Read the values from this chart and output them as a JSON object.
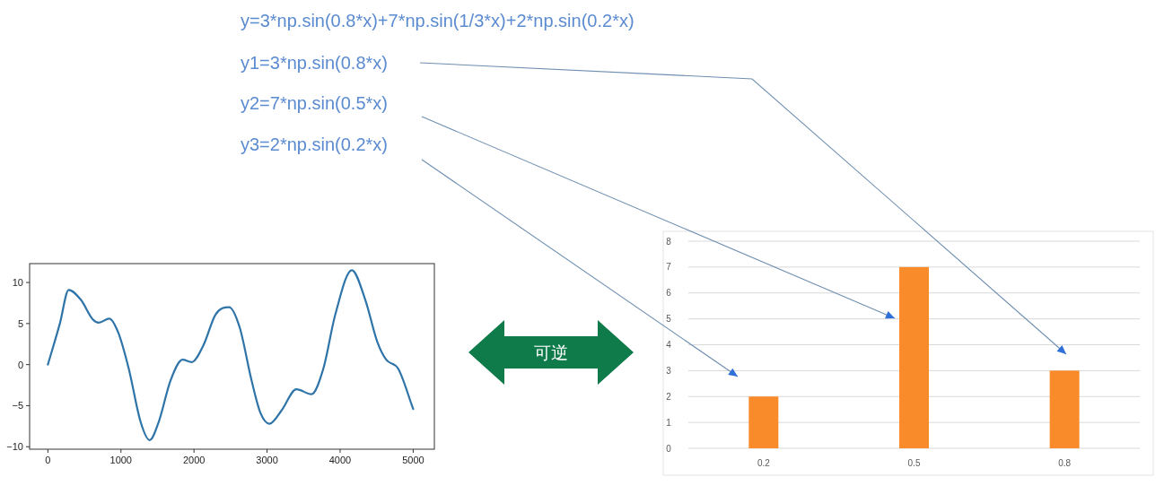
{
  "chart_data": [
    {
      "type": "other",
      "annotations": [
        "y=3*np.sin(0.8*x)+7*np.sin(1/3*x)+2*np.sin(0.2*x)"
      ]
    },
    {
      "type": "line",
      "color": "#2f74a8",
      "xlim": [
        -250,
        5290
      ],
      "ylim": [
        -10.3,
        12.3
      ],
      "xticks": [
        0,
        1000,
        2000,
        3000,
        4000,
        5000
      ],
      "yticks": [
        -10,
        -5,
        0,
        5,
        10
      ],
      "grid": false,
      "legend": false,
      "marker": "none",
      "line_style": "solid",
      "x": [
        0,
        164,
        285,
        451,
        615,
        697,
        840,
        963,
        1107,
        1270,
        1393,
        1516,
        1680,
        1844,
        1967,
        2131,
        2295,
        2480,
        2623,
        2787,
        2910,
        3033,
        3197,
        3402,
        3607,
        3770,
        3934,
        4160,
        4344,
        4508,
        4631,
        4795,
        5000
      ],
      "values": [
        0,
        5.0,
        9.1,
        7.9,
        5.5,
        5.1,
        5.6,
        3.9,
        -0.5,
        -7.0,
        -9.2,
        -7.0,
        -1.9,
        0.6,
        0.3,
        2.4,
        6.1,
        7.0,
        4.6,
        -1.9,
        -5.9,
        -7.2,
        -5.6,
        -3.0,
        -3.6,
        -0.5,
        6.1,
        11.5,
        7.9,
        2.8,
        0.6,
        -0.5,
        -5.4
      ]
    },
    {
      "type": "other",
      "annotations": [
        "可逆"
      ]
    },
    {
      "type": "bar",
      "categories": [
        "0.2",
        "0.5",
        "0.8"
      ],
      "values": [
        2,
        7,
        3
      ],
      "color": "#f98b2a",
      "ylim": [
        0,
        8
      ],
      "yticks": [
        0,
        1,
        2,
        3,
        4,
        5,
        6,
        7,
        8
      ],
      "grid": "y",
      "legend": false,
      "annotations": [
        "y1=3*np.sin(0.8*x)",
        "y2=7*np.sin(0.5*x)",
        "y3=2*np.sin(0.2*x)"
      ]
    }
  ]
}
